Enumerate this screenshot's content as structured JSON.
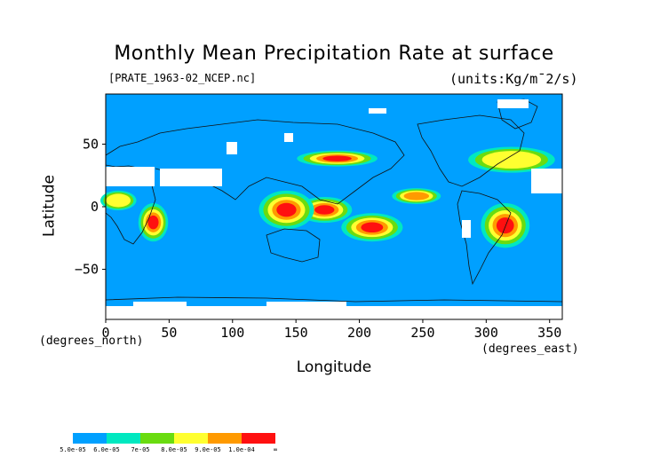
{
  "chart_data": {
    "type": "heatmap",
    "title": "Monthly Mean Precipitation Rate at surface",
    "source_label": "[PRATE_1963-02_NCEP.nc]",
    "units_label": "(units:Kg/m¯2/s)",
    "xlabel": "Longitude",
    "ylabel": "Latitude",
    "x_unit_label": "(degrees_east)",
    "y_unit_label": "(degrees_north)",
    "xlim": [
      0,
      360
    ],
    "ylim": [
      -90,
      90
    ],
    "xticks": [
      0,
      50,
      100,
      150,
      200,
      250,
      300,
      350
    ],
    "yticks": [
      50,
      0,
      -50
    ],
    "colorbar": {
      "labels": [
        "5.0e-05",
        "6.0e-05",
        "7e-05",
        "8.0e-05",
        "9.0e-05",
        "1.0e-04",
        "∞"
      ],
      "colors": [
        "#00a0ff",
        "#00e8c0",
        "#6adc10",
        "#ffff30",
        "#ff9a00",
        "#ff1010"
      ]
    },
    "regions": [
      {
        "level": 5,
        "lon": [
          155,
          190
        ],
        "lat": [
          -10,
          5
        ]
      },
      {
        "level": 5,
        "lon": [
          125,
          160
        ],
        "lat": [
          -15,
          10
        ]
      },
      {
        "level": 5,
        "lon": [
          190,
          230
        ],
        "lat": [
          -25,
          -8
        ]
      },
      {
        "level": 5,
        "lon": [
          300,
          330
        ],
        "lat": [
          -30,
          0
        ]
      },
      {
        "level": 5,
        "lon": [
          155,
          210
        ],
        "lat": [
          35,
          42
        ]
      },
      {
        "level": 5,
        "lon": [
          30,
          45
        ],
        "lat": [
          -25,
          0
        ]
      },
      {
        "level": 4,
        "lon": [
          230,
          260
        ],
        "lat": [
          5,
          12
        ]
      },
      {
        "level": 3,
        "lon": [
          290,
          350
        ],
        "lat": [
          30,
          45
        ]
      },
      {
        "level": 3,
        "lon": [
          0,
          20
        ],
        "lat": [
          0,
          10
        ]
      }
    ]
  }
}
